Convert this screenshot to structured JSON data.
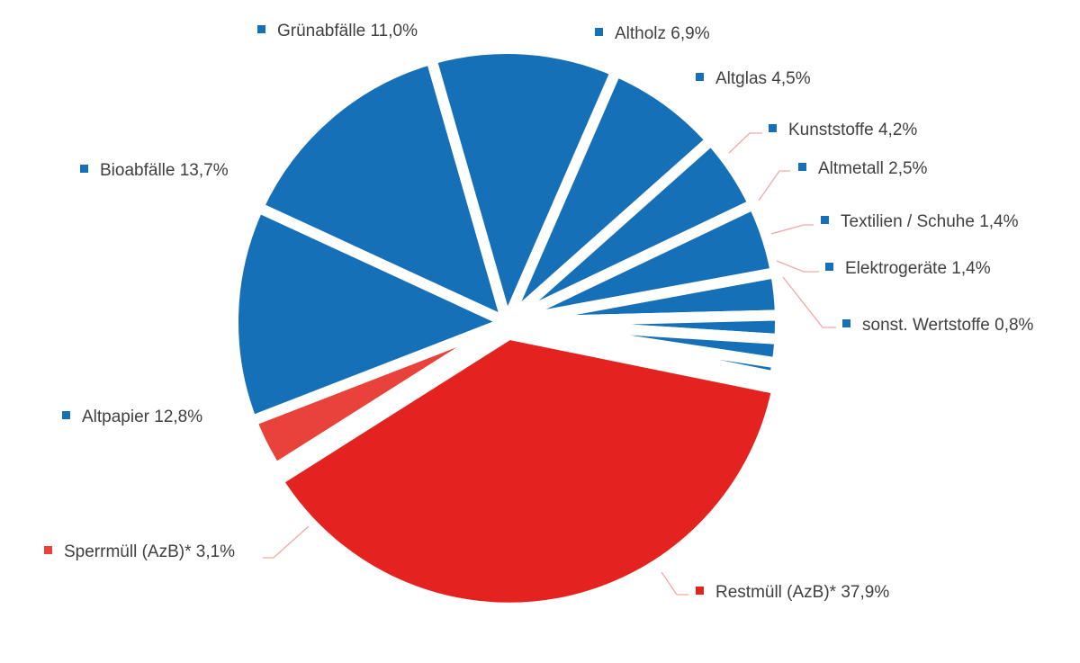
{
  "chart_data": {
    "type": "pie",
    "start_angle_deg": 11.5,
    "direction": "clockwise",
    "slices": [
      {
        "name": "Restmüll (AzB)*",
        "value": 37.9,
        "label": "Restmüll (AzB)* 37,9%",
        "color": "#e42320"
      },
      {
        "name": "Sperrmüll (AzB)*",
        "value": 3.1,
        "label": "Sperrmüll (AzB)* 3,1%",
        "color": "#e8423a"
      },
      {
        "name": "Altpapier",
        "value": 12.8,
        "label": "Altpapier 12,8%",
        "color": "#1570b8"
      },
      {
        "name": "Bioabfälle",
        "value": 13.7,
        "label": "Bioabfälle 13,7%",
        "color": "#1570b8"
      },
      {
        "name": "Grünabfälle",
        "value": 11.0,
        "label": "Grünabfälle 11,0%",
        "color": "#1570b8"
      },
      {
        "name": "Altholz",
        "value": 6.9,
        "label": "Altholz 6,9%",
        "color": "#1570b8"
      },
      {
        "name": "Altglas",
        "value": 4.5,
        "label": "Altglas 4,5%",
        "color": "#1570b8"
      },
      {
        "name": "Kunststoffe",
        "value": 4.2,
        "label": "Kunststoffe 4,2%",
        "color": "#1570b8"
      },
      {
        "name": "Altmetall",
        "value": 2.5,
        "label": "Altmetall 2,5%",
        "color": "#1570b8"
      },
      {
        "name": "Textilien / Schuhe",
        "value": 1.4,
        "label": "Textilien / Schuhe 1,4%",
        "color": "#1570b8"
      },
      {
        "name": "Elektrogeräte",
        "value": 1.4,
        "label": "Elektrogeräte 1,4%",
        "color": "#1570b8"
      },
      {
        "name": "sonst. Wertstoffe",
        "value": 0.8,
        "label": "sonst. Wertstoffe 0,8%",
        "color": "#1570b8"
      }
    ]
  }
}
